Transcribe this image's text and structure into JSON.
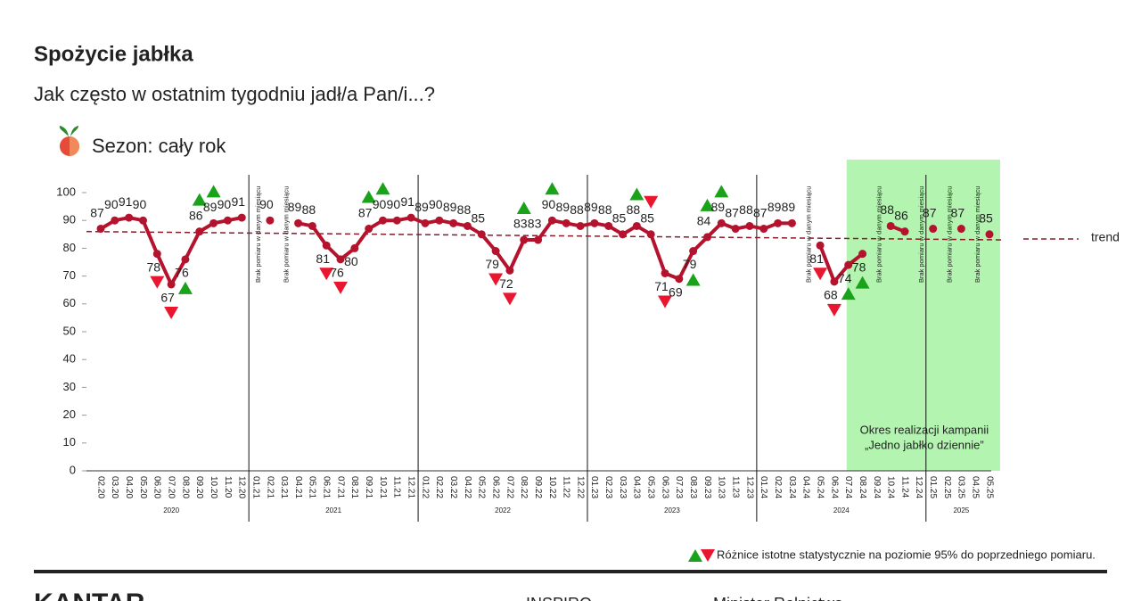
{
  "header": {
    "title": "Spożycie jabłka",
    "subtitle": "Jak często w ostatnim tygodniu jadł/a Pan/i...?",
    "season": "Sezon: cały rok"
  },
  "chart_data": {
    "type": "line",
    "categories": [
      "02.20",
      "03.20",
      "04.20",
      "05.20",
      "06.20",
      "07.20",
      "08.20",
      "09.20",
      "10.20",
      "11.20",
      "12.20",
      "01.21",
      "02.21",
      "03.21",
      "04.21",
      "05.21",
      "06.21",
      "07.21",
      "08.21",
      "09.21",
      "10.21",
      "11.21",
      "12.21",
      "01.22",
      "02.22",
      "03.22",
      "04.22",
      "05.22",
      "06.22",
      "07.22",
      "08.22",
      "09.22",
      "10.22",
      "11.22",
      "12.22",
      "01.23",
      "02.23",
      "03.23",
      "04.23",
      "05.23",
      "06.23",
      "07.23",
      "08.23",
      "09.23",
      "10.23",
      "11.23",
      "12.23",
      "01.24",
      "02.24",
      "03.24",
      "04.24",
      "05.24",
      "06.24",
      "07.24",
      "08.24",
      "09.24",
      "10.24",
      "11.24",
      "12.24",
      "01.25",
      "02.25",
      "03.25",
      "04.25",
      "05.25"
    ],
    "year_labels": [
      "2020",
      "2021",
      "2022",
      "2023",
      "2024",
      "2025"
    ],
    "series": [
      {
        "name": "Spożycie jabłka",
        "color": "#b5122e",
        "values": [
          87,
          90,
          91,
          90,
          78,
          67,
          76,
          86,
          89,
          90,
          91,
          null,
          90,
          null,
          89,
          88,
          81,
          76,
          80,
          87,
          90,
          90,
          91,
          89,
          90,
          89,
          88,
          85,
          79,
          72,
          83,
          83,
          90,
          89,
          88,
          89,
          88,
          85,
          88,
          85,
          71,
          69,
          79,
          84,
          89,
          87,
          88,
          87,
          89,
          89,
          null,
          81,
          68,
          74,
          78,
          null,
          88,
          86,
          null,
          87,
          null,
          87,
          null,
          85
        ]
      }
    ],
    "significance": [
      null,
      null,
      null,
      null,
      "down",
      "down",
      "up",
      "up",
      "up",
      null,
      null,
      null,
      null,
      null,
      null,
      null,
      "down",
      "down",
      null,
      "up",
      "up",
      null,
      null,
      null,
      null,
      null,
      null,
      null,
      "down",
      "down",
      "up",
      null,
      "up",
      null,
      null,
      null,
      null,
      null,
      "up",
      "down",
      "down",
      null,
      "up",
      "up",
      "up",
      null,
      null,
      null,
      null,
      null,
      null,
      "down",
      "down",
      "up",
      "up",
      null,
      null,
      null,
      null,
      null,
      null,
      null,
      null,
      null
    ],
    "significance_colors": {
      "up": "#1aa31a",
      "down": "#e8162f"
    },
    "significance_note": "Różnice istotne statystycznie na poziomie 95% do poprzedniego pomiaru.",
    "missing_label": "Brak pomiaru w danym miesiącu",
    "trend": {
      "name": "trend",
      "color": "#8b1a2b",
      "values": [
        86,
        83
      ]
    },
    "highlight": {
      "from": "07.24",
      "to": "05.25",
      "color": "#b3f5b0",
      "label": [
        "Okres realizacji kampanii",
        "„Jedno jabłko dziennie”"
      ]
    },
    "ylim": [
      0,
      100
    ],
    "yticks": [
      0,
      10,
      20,
      30,
      40,
      50,
      60,
      70,
      80,
      90,
      100
    ]
  },
  "footer": {
    "logos": [
      "KANTAR",
      "INSPIRO",
      "Minister Rolnictwa"
    ]
  }
}
